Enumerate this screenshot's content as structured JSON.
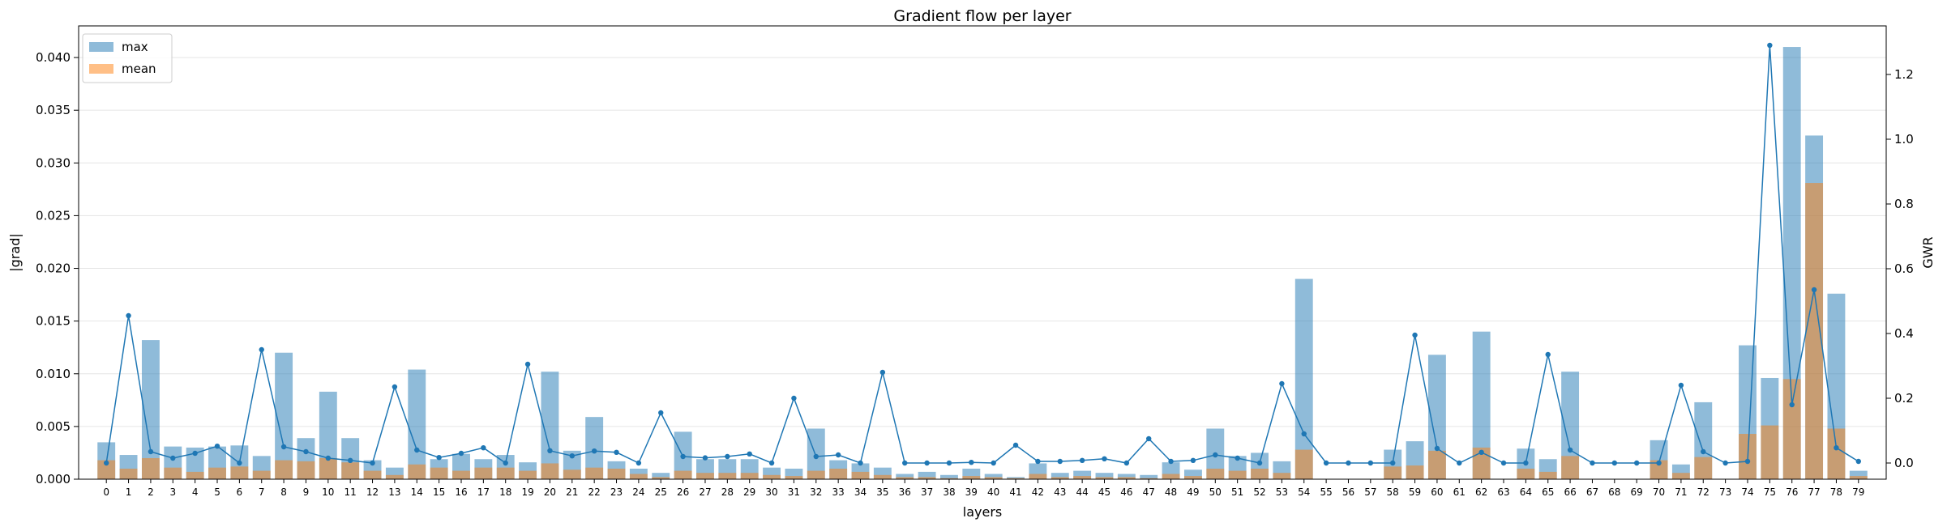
{
  "chart_data": {
    "type": "bar",
    "title": "Gradient flow per layer",
    "xlabel": "layers",
    "ylabel": "|grad|",
    "y2label": "GWR",
    "ylim": [
      0,
      0.043
    ],
    "y2lim": [
      -0.05,
      1.35
    ],
    "yticks": [
      0.0,
      0.005,
      0.01,
      0.015,
      0.02,
      0.025,
      0.03,
      0.035,
      0.04
    ],
    "ytick_labels": [
      "0.000",
      "0.005",
      "0.010",
      "0.015",
      "0.020",
      "0.025",
      "0.030",
      "0.035",
      "0.040"
    ],
    "y2ticks": [
      0.0,
      0.2,
      0.4,
      0.6,
      0.8,
      1.0,
      1.2
    ],
    "y2tick_labels": [
      "0.0",
      "0.2",
      "0.4",
      "0.6",
      "0.8",
      "1.0",
      "1.2"
    ],
    "grid": "horizontal",
    "legend_position": "top-left",
    "categories": [
      "0",
      "1",
      "2",
      "3",
      "4",
      "5",
      "6",
      "7",
      "8",
      "9",
      "10",
      "11",
      "12",
      "13",
      "14",
      "15",
      "16",
      "17",
      "18",
      "19",
      "20",
      "21",
      "22",
      "23",
      "24",
      "25",
      "26",
      "27",
      "28",
      "29",
      "30",
      "31",
      "32",
      "33",
      "34",
      "35",
      "36",
      "37",
      "38",
      "39",
      "40",
      "41",
      "42",
      "43",
      "44",
      "45",
      "46",
      "47",
      "48",
      "49",
      "50",
      "51",
      "52",
      "53",
      "54",
      "55",
      "56",
      "57",
      "58",
      "59",
      "60",
      "61",
      "62",
      "63",
      "64",
      "65",
      "66",
      "67",
      "68",
      "69",
      "70",
      "71",
      "72",
      "73",
      "74",
      "75",
      "76",
      "77",
      "78",
      "79"
    ],
    "series": [
      {
        "name": "max",
        "kind": "bar",
        "color": "#1f77b4",
        "opacity": 0.5,
        "axis": "left",
        "values": [
          0.0035,
          0.0023,
          0.0132,
          0.0031,
          0.003,
          0.0031,
          0.0032,
          0.0022,
          0.012,
          0.0039,
          0.0083,
          0.0039,
          0.0018,
          0.0011,
          0.0104,
          0.0019,
          0.0024,
          0.0019,
          0.0023,
          0.0016,
          0.0102,
          0.0027,
          0.0059,
          0.0017,
          0.001,
          0.0006,
          0.0045,
          0.0019,
          0.0019,
          0.0019,
          0.0011,
          0.001,
          0.0048,
          0.0018,
          0.0015,
          0.0011,
          0.0005,
          0.0007,
          0.0004,
          0.001,
          0.0005,
          0.0002,
          0.0015,
          0.0006,
          0.0008,
          0.0006,
          0.0005,
          0.0004,
          0.0016,
          0.0009,
          0.0048,
          0.0022,
          0.0025,
          0.0017,
          0.019,
          0.0,
          0.0,
          0.0,
          0.0028,
          0.0036,
          0.0118,
          0.0,
          0.014,
          0.0,
          0.0029,
          0.0019,
          0.0102,
          0.0,
          0.0,
          0.0,
          0.0037,
          0.0014,
          0.0073,
          0.0,
          0.0127,
          0.0096,
          0.041,
          0.0326,
          0.0176,
          0.0008
        ]
      },
      {
        "name": "mean",
        "kind": "bar",
        "color": "#ff7f0e",
        "opacity": 0.5,
        "axis": "left",
        "values": [
          0.0018,
          0.001,
          0.002,
          0.0011,
          0.0007,
          0.0011,
          0.0012,
          0.0008,
          0.0018,
          0.0017,
          0.002,
          0.0016,
          0.0008,
          0.0004,
          0.0014,
          0.0011,
          0.0008,
          0.0011,
          0.0011,
          0.0008,
          0.0015,
          0.0009,
          0.0011,
          0.001,
          0.0005,
          0.0002,
          0.0008,
          0.0006,
          0.0006,
          0.0006,
          0.0004,
          0.0003,
          0.0008,
          0.001,
          0.0007,
          0.0004,
          0.0002,
          0.0002,
          0.0001,
          0.0003,
          0.0002,
          0.0001,
          0.0005,
          0.0002,
          0.0003,
          0.0002,
          0.0002,
          0.0001,
          0.0005,
          0.0003,
          0.001,
          0.0008,
          0.001,
          0.0006,
          0.0028,
          0.0,
          0.0,
          0.0,
          0.0012,
          0.0013,
          0.0027,
          0.0,
          0.003,
          0.0,
          0.001,
          0.0007,
          0.0022,
          0.0,
          0.0,
          0.0,
          0.0018,
          0.0006,
          0.0021,
          0.0,
          0.0043,
          0.0051,
          0.0095,
          0.0281,
          0.0048,
          0.0003
        ]
      },
      {
        "kind": "line",
        "color": "#1f77b4",
        "axis": "right",
        "values": [
          0.0,
          0.455,
          0.035,
          0.015,
          0.03,
          0.052,
          0.0,
          0.35,
          0.05,
          0.035,
          0.015,
          0.008,
          0.0,
          0.235,
          0.04,
          0.017,
          0.03,
          0.047,
          0.0,
          0.305,
          0.038,
          0.022,
          0.037,
          0.033,
          0.0,
          0.155,
          0.02,
          0.016,
          0.02,
          0.028,
          0.0,
          0.2,
          0.02,
          0.025,
          0.0,
          0.28,
          0.0,
          0.0,
          0.0,
          0.002,
          0.0,
          0.055,
          0.005,
          0.005,
          0.008,
          0.013,
          0.0,
          0.075,
          0.005,
          0.008,
          0.025,
          0.015,
          0.0,
          0.245,
          0.09,
          0.0,
          0.0,
          0.0,
          0.0,
          0.395,
          0.045,
          0.0,
          0.033,
          0.0,
          0.0,
          0.335,
          0.04,
          0.0,
          0.0,
          0.0,
          0.0,
          0.24,
          0.035,
          0.0,
          0.005,
          1.29,
          0.18,
          0.535,
          0.047,
          0.005
        ]
      }
    ]
  }
}
